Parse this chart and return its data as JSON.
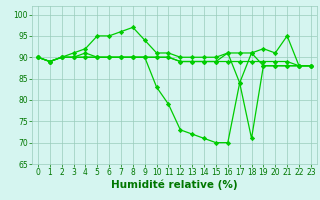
{
  "series": [
    {
      "x": [
        0,
        1,
        2,
        3,
        4,
        5,
        6,
        7,
        8,
        9,
        10,
        11,
        12,
        13,
        14,
        15,
        16,
        17,
        18,
        19,
        20,
        21,
        22,
        23
      ],
      "y": [
        90,
        89,
        90,
        91,
        92,
        95,
        95,
        96,
        97,
        94,
        91,
        91,
        90,
        90,
        90,
        90,
        91,
        91,
        91,
        92,
        91,
        95,
        88,
        88
      ],
      "color": "#00cc00",
      "marker": "D",
      "markersize": 2.2,
      "linewidth": 0.9
    },
    {
      "x": [
        0,
        1,
        2,
        3,
        4,
        5,
        6,
        7,
        8,
        9,
        10,
        11,
        12,
        13,
        14,
        15,
        16,
        17,
        18,
        19,
        20,
        21,
        22,
        23
      ],
      "y": [
        90,
        89,
        90,
        90,
        91,
        90,
        90,
        90,
        90,
        90,
        90,
        90,
        89,
        89,
        89,
        89,
        91,
        84,
        71,
        88,
        88,
        88,
        88,
        88
      ],
      "color": "#00cc00",
      "marker": "D",
      "markersize": 2.2,
      "linewidth": 0.9
    },
    {
      "x": [
        0,
        1,
        2,
        3,
        4,
        5,
        6,
        7,
        8,
        9,
        10,
        11,
        12,
        13,
        14,
        15,
        16,
        17,
        18,
        19,
        20,
        21,
        22,
        23
      ],
      "y": [
        90,
        89,
        90,
        90,
        90,
        90,
        90,
        90,
        90,
        90,
        83,
        79,
        73,
        72,
        71,
        70,
        70,
        84,
        91,
        88,
        88,
        88,
        88,
        88
      ],
      "color": "#00cc00",
      "marker": "D",
      "markersize": 2.2,
      "linewidth": 0.9
    },
    {
      "x": [
        0,
        1,
        2,
        3,
        4,
        5,
        6,
        7,
        8,
        9,
        10,
        11,
        12,
        13,
        14,
        15,
        16,
        17,
        18,
        19,
        20,
        21,
        22,
        23
      ],
      "y": [
        90,
        89,
        90,
        90,
        90,
        90,
        90,
        90,
        90,
        90,
        90,
        90,
        89,
        89,
        89,
        89,
        89,
        89,
        89,
        89,
        89,
        89,
        88,
        88
      ],
      "color": "#00cc00",
      "marker": "D",
      "markersize": 2.2,
      "linewidth": 0.9
    }
  ],
  "xlim": [
    -0.5,
    23.5
  ],
  "ylim": [
    65,
    102
  ],
  "yticks": [
    65,
    70,
    75,
    80,
    85,
    90,
    95,
    100
  ],
  "xticks": [
    0,
    1,
    2,
    3,
    4,
    5,
    6,
    7,
    8,
    9,
    10,
    11,
    12,
    13,
    14,
    15,
    16,
    17,
    18,
    19,
    20,
    21,
    22,
    23
  ],
  "xlabel": "Humidité relative (%)",
  "bg_color": "#d5f5f0",
  "grid_color": "#99ccbb",
  "line_color": "#00bb00",
  "tick_color": "#007700",
  "label_color": "#007700",
  "tick_fontsize": 5.5,
  "xlabel_fontsize": 7.5
}
